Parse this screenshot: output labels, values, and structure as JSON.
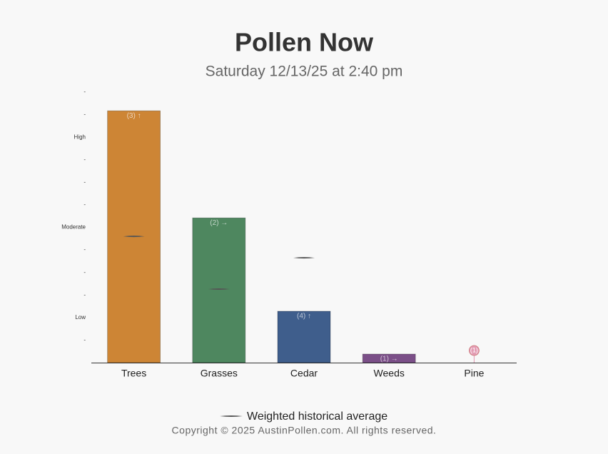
{
  "chart_data": {
    "type": "bar",
    "title": "Pollen Now",
    "subtitle": "Saturday 12/13/25 at 2:40 pm",
    "categories": [
      "Trees",
      "Grasses",
      "Cedar",
      "Weeds",
      "Pine"
    ],
    "values": [
      11.17,
      6.42,
      2.28,
      0.38,
      0
    ],
    "colors": [
      "#cd8535",
      "#4e875f",
      "#3f5e8c",
      "#7b4f88",
      "#e39bb3"
    ],
    "bar_labels": [
      "(3) ↑",
      "(2) →",
      "(4) ↑",
      "(1) →",
      "(1)"
    ],
    "historical_average": {
      "name": "Weighted historical average",
      "color": "#555555",
      "values": [
        5.6,
        3.26,
        4.65,
        null,
        null
      ]
    },
    "ylim": [
      0,
      12
    ],
    "yticks": [
      {
        "value": 1,
        "label": "-"
      },
      {
        "value": 2,
        "label": "Low"
      },
      {
        "value": 3,
        "label": "-"
      },
      {
        "value": 4,
        "label": "-"
      },
      {
        "value": 5,
        "label": "-"
      },
      {
        "value": 6,
        "label": "Moderate"
      },
      {
        "value": 7,
        "label": "-"
      },
      {
        "value": 8,
        "label": "-"
      },
      {
        "value": 9,
        "label": "-"
      },
      {
        "value": 10,
        "label": "High"
      },
      {
        "value": 11,
        "label": "-"
      },
      {
        "value": 12,
        "label": "-"
      }
    ],
    "grid": false,
    "footer": "Copyright © 2025 AustinPollen.com.  All rights reserved."
  }
}
